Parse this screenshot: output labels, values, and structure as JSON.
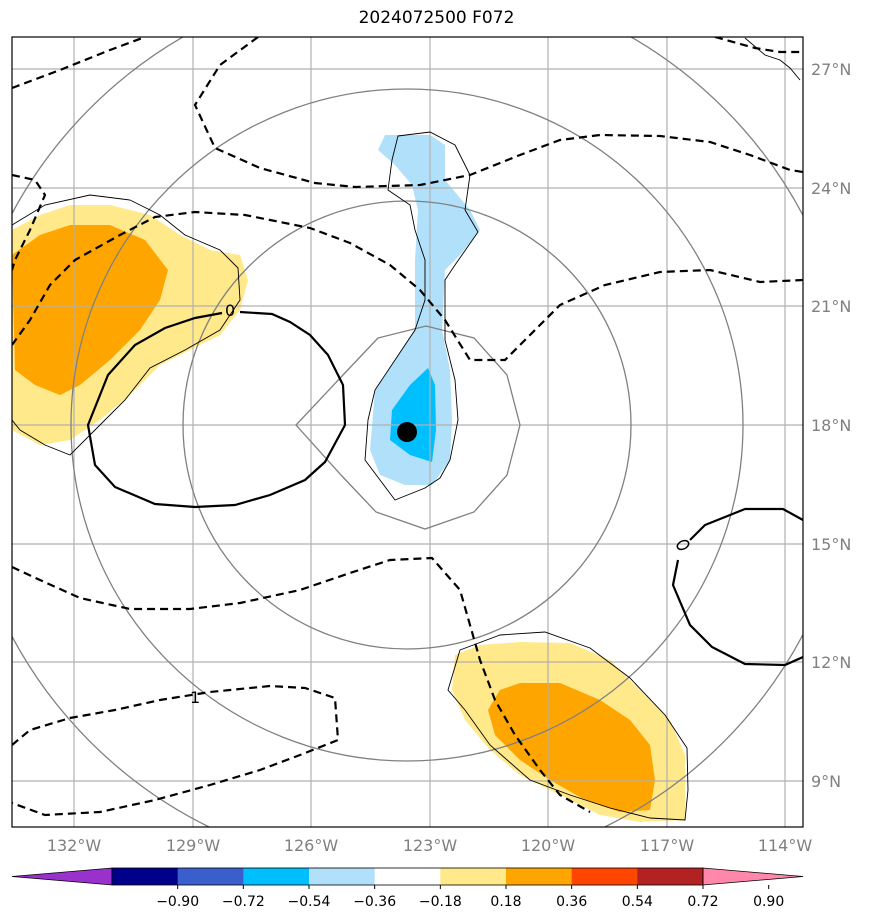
{
  "title": "2024072500 F072",
  "map": {
    "lon_labels": [
      "132°W",
      "129°W",
      "126°W",
      "123°W",
      "120°W",
      "117°W",
      "114°W"
    ],
    "lat_labels": [
      "27°N",
      "24°N",
      "21°N",
      "18°N",
      "15°N",
      "12°N",
      "9°N"
    ],
    "contour_labels": {
      "zero": "0",
      "one": "1"
    },
    "storm_center": {
      "lon": -123.5,
      "lat": 17.8
    }
  },
  "colorbar": {
    "ticks": [
      "−0.90",
      "−0.72",
      "−0.54",
      "−0.36",
      "−0.18",
      "0.18",
      "0.36",
      "0.54",
      "0.72",
      "0.90"
    ],
    "colors": [
      "#9932cc",
      "#00008b",
      "#3a5fcd",
      "#00bfff",
      "#b0e0fa",
      "#ffffff",
      "#ffe98a",
      "#ffa500",
      "#ff4500",
      "#b22222",
      "#ff88aa"
    ],
    "under_color": "#9932cc",
    "over_color": "#ff88aa"
  }
}
